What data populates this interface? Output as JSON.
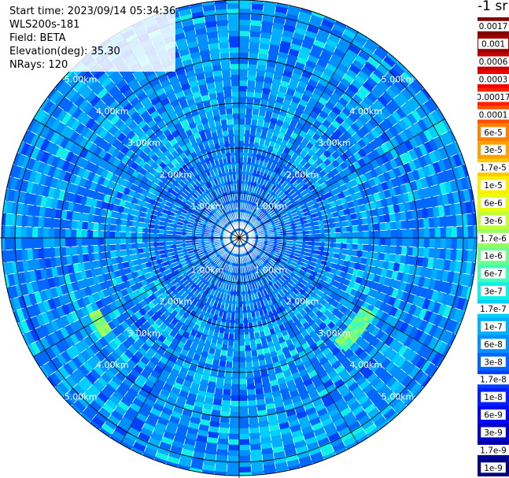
{
  "info": {
    "start_time": "Start time: 2023/09/14 05:34:36",
    "instrument": "WLS200s-181",
    "field": "Field: BETA",
    "elevation": "Elevation(deg): 35.30",
    "nrays": "NRays: 120"
  },
  "ppi": {
    "nrays": 120,
    "max_range_km": 5.3,
    "rings_km": [
      1,
      2,
      3,
      4,
      5
    ],
    "ring_labels": [
      "1.00km",
      "2.00km",
      "3.00km",
      "4.00km",
      "5.00km"
    ],
    "spokes_deg": [
      0,
      30,
      60,
      90,
      120,
      150,
      180,
      210,
      240,
      270,
      300,
      330
    ],
    "hotspots": [
      {
        "azimuth_deg": 128,
        "range_km": 3.3,
        "width_deg": 9,
        "depth_km": 0.35,
        "level": 14
      },
      {
        "azimuth_deg": 238,
        "range_km": 3.6,
        "width_deg": 4,
        "depth_km": 0.2,
        "level": 13
      }
    ]
  },
  "colorbar": {
    "unit": "-1 sr",
    "labels": [
      "0.0017",
      "0.001",
      "0.0006",
      "0.0003",
      "0.00017",
      "0.0001",
      "6e-5",
      "3e-5",
      "1.7e-5",
      "1e-5",
      "6e-6",
      "3e-6",
      "1.7e-6",
      "1e-6",
      "6e-7",
      "3e-7",
      "1.7e-7",
      "1e-7",
      "6e-8",
      "3e-8",
      "1.7e-8",
      "1e-8",
      "6e-9",
      "3e-9",
      "1.7e-9",
      "1e-9"
    ],
    "colors": [
      "#800000",
      "#a00000",
      "#c80000",
      "#f00000",
      "#ff2000",
      "#ff5000",
      "#ff8000",
      "#ffa000",
      "#ffc800",
      "#ffee00",
      "#e6ff10",
      "#c0ff38",
      "#98ff60",
      "#70ff88",
      "#40ffb8",
      "#10f0e8",
      "#00d0ff",
      "#00b0ff",
      "#0090ff",
      "#0068ff",
      "#0040ff",
      "#0020ff",
      "#0008f0",
      "#0000c8",
      "#0000a0",
      "#00007c"
    ]
  }
}
